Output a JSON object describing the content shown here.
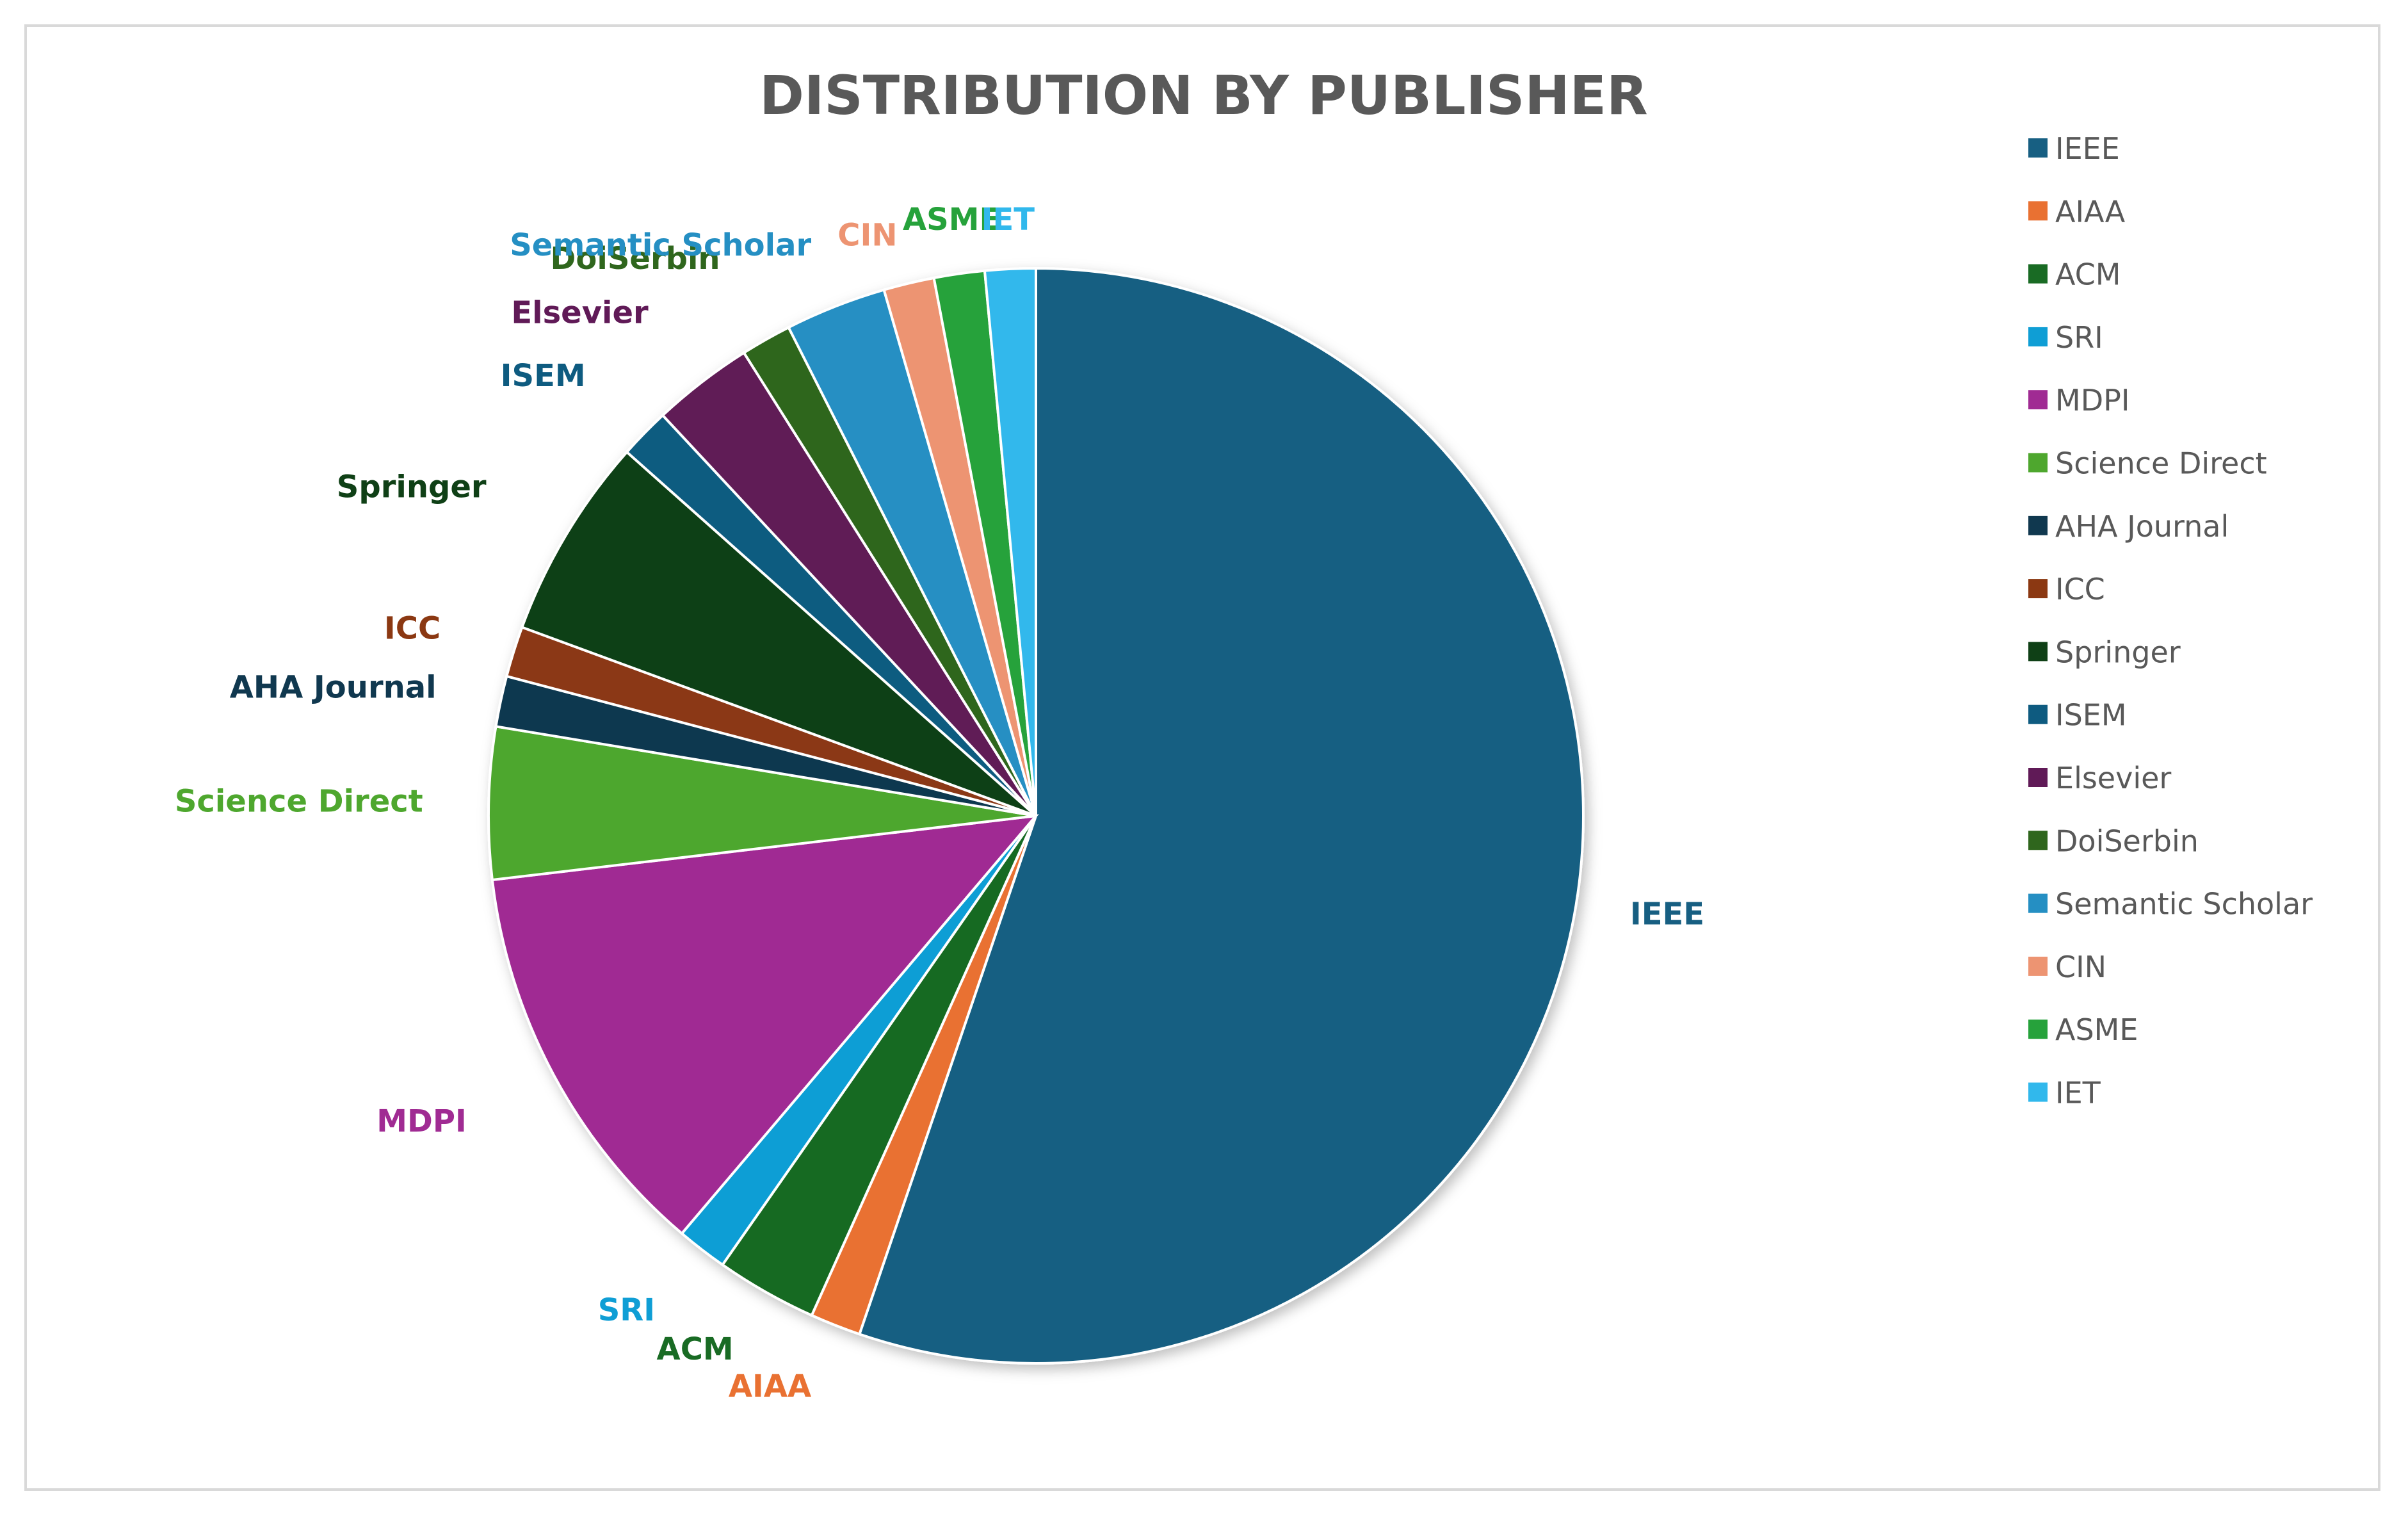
{
  "chart_data": {
    "type": "pie",
    "title": "DISTRIBUTION BY PUBLISHER",
    "legend_position": "right",
    "slices": [
      {
        "label": "IEEE",
        "value": 37,
        "color": "#175F82"
      },
      {
        "label": "AIAA",
        "value": 1,
        "color": "#E97132"
      },
      {
        "label": "ACM",
        "value": 2,
        "color": "#196B24"
      },
      {
        "label": "SRI",
        "value": 1,
        "color": "#0F9ED5"
      },
      {
        "label": "MDPI",
        "value": 8,
        "color": "#A02B93"
      },
      {
        "label": "Science Direct",
        "value": 3,
        "color": "#4EA72E"
      },
      {
        "label": "AHA Journal",
        "value": 1,
        "color": "#10384F"
      },
      {
        "label": "ICC",
        "value": 1,
        "color": "#8B3812"
      },
      {
        "label": "Springer",
        "value": 4,
        "color": "#0F4016"
      },
      {
        "label": "ISEM",
        "value": 1,
        "color": "#0E5B80"
      },
      {
        "label": "Elsevier",
        "value": 2,
        "color": "#601A57"
      },
      {
        "label": "DoiSerbin",
        "value": 1,
        "color": "#2F661D"
      },
      {
        "label": "Semantic Scholar",
        "value": 2,
        "color": "#258FC3"
      },
      {
        "label": "CIN",
        "value": 1,
        "color": "#ED9472"
      },
      {
        "label": "ASME",
        "value": 1,
        "color": "#26A23B"
      },
      {
        "label": "IET",
        "value": 1,
        "color": "#31B8EC"
      }
    ]
  }
}
